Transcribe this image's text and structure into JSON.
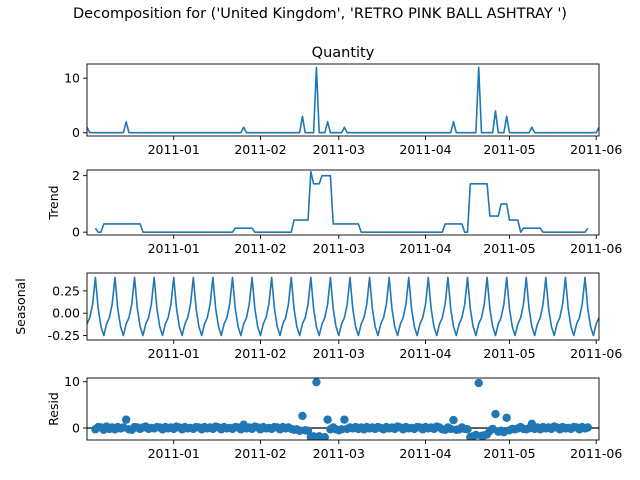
{
  "figure": {
    "suptitle": "Decomposition for ('United Kingdom', 'RETRO PINK BALL ASHTRAY ')"
  },
  "chart_data": [
    {
      "type": "line",
      "title": "Quantity",
      "ylabel": "",
      "xlabel": "",
      "color": "#1f77b4",
      "x_start": "2010-12-01",
      "x_end": "2011-06-02",
      "xticks": [
        "2011-01",
        "2011-02",
        "2011-03",
        "2011-04",
        "2011-05",
        "2011-06"
      ],
      "yticks": [
        0,
        10
      ],
      "ylim": [
        -0.6,
        12.6
      ],
      "points": [
        [
          "2010-12-01",
          1
        ],
        [
          "2010-12-02",
          0
        ],
        [
          "2010-12-14",
          0
        ],
        [
          "2010-12-15",
          2
        ],
        [
          "2010-12-16",
          0
        ],
        [
          "2011-01-25",
          0
        ],
        [
          "2011-01-26",
          1
        ],
        [
          "2011-01-27",
          0
        ],
        [
          "2011-02-15",
          0
        ],
        [
          "2011-02-16",
          3
        ],
        [
          "2011-02-17",
          0
        ],
        [
          "2011-02-20",
          0
        ],
        [
          "2011-02-21",
          12
        ],
        [
          "2011-02-22",
          0
        ],
        [
          "2011-02-24",
          0
        ],
        [
          "2011-02-25",
          2
        ],
        [
          "2011-02-26",
          0
        ],
        [
          "2011-03-02",
          0
        ],
        [
          "2011-03-03",
          1
        ],
        [
          "2011-03-04",
          0
        ],
        [
          "2011-04-10",
          0
        ],
        [
          "2011-04-11",
          2
        ],
        [
          "2011-04-12",
          0
        ],
        [
          "2011-04-19",
          0
        ],
        [
          "2011-04-20",
          12
        ],
        [
          "2011-04-21",
          0
        ],
        [
          "2011-04-25",
          0
        ],
        [
          "2011-04-26",
          4
        ],
        [
          "2011-04-27",
          0
        ],
        [
          "2011-04-29",
          0
        ],
        [
          "2011-04-30",
          3
        ],
        [
          "2011-05-01",
          0
        ],
        [
          "2011-05-08",
          0
        ],
        [
          "2011-05-09",
          1
        ],
        [
          "2011-05-10",
          0
        ],
        [
          "2011-06-01",
          0
        ],
        [
          "2011-06-02",
          1
        ]
      ]
    },
    {
      "type": "line",
      "title": "",
      "ylabel": "Trend",
      "xlabel": "",
      "color": "#1f77b4",
      "x_start": "2010-12-01",
      "x_end": "2011-06-02",
      "xticks": [
        "2011-01",
        "2011-02",
        "2011-03",
        "2011-04",
        "2011-05",
        "2011-06"
      ],
      "yticks": [
        0,
        2
      ],
      "ylim": [
        -0.1,
        2.2
      ],
      "points": [
        [
          "2010-12-04",
          0.14
        ],
        [
          "2010-12-05",
          0
        ],
        [
          "2010-12-06",
          0
        ],
        [
          "2010-12-07",
          0.29
        ],
        [
          "2010-12-14",
          0.29
        ],
        [
          "2010-12-15",
          0.29
        ],
        [
          "2010-12-20",
          0.29
        ],
        [
          "2010-12-21",
          0
        ],
        [
          "2011-01-22",
          0
        ],
        [
          "2011-01-23",
          0.14
        ],
        [
          "2011-01-29",
          0.14
        ],
        [
          "2011-01-30",
          0
        ],
        [
          "2011-02-12",
          0
        ],
        [
          "2011-02-13",
          0.43
        ],
        [
          "2011-02-18",
          0.43
        ],
        [
          "2011-02-19",
          2.14
        ],
        [
          "2011-02-20",
          1.71
        ],
        [
          "2011-02-22",
          1.71
        ],
        [
          "2011-02-23",
          2.0
        ],
        [
          "2011-02-26",
          2.0
        ],
        [
          "2011-02-27",
          0.29
        ],
        [
          "2011-03-08",
          0.29
        ],
        [
          "2011-03-09",
          0
        ],
        [
          "2011-04-07",
          0
        ],
        [
          "2011-04-08",
          0.29
        ],
        [
          "2011-04-14",
          0.29
        ],
        [
          "2011-04-15",
          0
        ],
        [
          "2011-04-16",
          0
        ],
        [
          "2011-04-17",
          1.71
        ],
        [
          "2011-04-23",
          1.71
        ],
        [
          "2011-04-24",
          0.57
        ],
        [
          "2011-04-27",
          0.57
        ],
        [
          "2011-04-28",
          1.0
        ],
        [
          "2011-04-30",
          1.0
        ],
        [
          "2011-05-01",
          0.43
        ],
        [
          "2011-05-04",
          0.43
        ],
        [
          "2011-05-05",
          0
        ],
        [
          "2011-05-06",
          0.14
        ],
        [
          "2011-05-12",
          0.14
        ],
        [
          "2011-05-13",
          0
        ],
        [
          "2011-05-28",
          0
        ],
        [
          "2011-05-29",
          0.14
        ]
      ]
    },
    {
      "type": "line",
      "title": "",
      "ylabel": "Seasonal",
      "xlabel": "",
      "color": "#1f77b4",
      "x_start": "2010-12-01",
      "x_end": "2011-06-02",
      "xticks": [
        "2011-01",
        "2011-02",
        "2011-03",
        "2011-04",
        "2011-05",
        "2011-06"
      ],
      "yticks": [
        0.25,
        0.0,
        -0.25
      ],
      "ylim": [
        -0.3,
        0.45
      ],
      "period": 7,
      "pattern_start": "2010-12-01",
      "pattern": [
        -0.12,
        -0.05,
        0.1,
        0.4,
        0.05,
        -0.15,
        -0.25
      ]
    },
    {
      "type": "scatter",
      "title": "",
      "ylabel": "Resid",
      "xlabel": "",
      "color": "#1f77b4",
      "x_start": "2010-12-01",
      "x_end": "2011-06-02",
      "xticks": [
        "2011-01",
        "2011-02",
        "2011-03",
        "2011-04",
        "2011-05",
        "2011-06"
      ],
      "yticks": [
        0,
        10
      ],
      "ylim": [
        -2.6,
        10.8
      ],
      "baseline": 0,
      "points": [
        [
          "2010-12-04",
          -0.3
        ],
        [
          "2010-12-05",
          0.2
        ],
        [
          "2010-12-06",
          0.1
        ],
        [
          "2010-12-07",
          -0.4
        ],
        [
          "2010-12-08",
          0.3
        ],
        [
          "2010-12-09",
          -0.2
        ],
        [
          "2010-12-10",
          0.1
        ],
        [
          "2010-12-11",
          -0.3
        ],
        [
          "2010-12-12",
          0.2
        ],
        [
          "2010-12-13",
          -0.1
        ],
        [
          "2010-12-14",
          0.1
        ],
        [
          "2010-12-15",
          1.8
        ],
        [
          "2010-12-16",
          -0.3
        ],
        [
          "2010-12-17",
          -0.4
        ],
        [
          "2010-12-18",
          0.2
        ],
        [
          "2010-12-19",
          0.1
        ],
        [
          "2010-12-20",
          -0.2
        ],
        [
          "2010-12-21",
          0.1
        ],
        [
          "2010-12-22",
          0.3
        ],
        [
          "2010-12-23",
          -0.2
        ],
        [
          "2010-12-24",
          0.0
        ],
        [
          "2010-12-25",
          -0.1
        ],
        [
          "2010-12-26",
          0.2
        ],
        [
          "2010-12-27",
          0.1
        ],
        [
          "2010-12-28",
          -0.3
        ],
        [
          "2010-12-29",
          0.2
        ],
        [
          "2010-12-30",
          -0.1
        ],
        [
          "2010-12-31",
          0.1
        ],
        [
          "2011-01-01",
          -0.2
        ],
        [
          "2011-01-02",
          0.3
        ],
        [
          "2011-01-03",
          0.1
        ],
        [
          "2011-01-04",
          -0.3
        ],
        [
          "2011-01-05",
          0.2
        ],
        [
          "2011-01-06",
          -0.1
        ],
        [
          "2011-01-07",
          0.0
        ],
        [
          "2011-01-08",
          -0.2
        ],
        [
          "2011-01-09",
          0.2
        ],
        [
          "2011-01-10",
          0.1
        ],
        [
          "2011-01-11",
          -0.3
        ],
        [
          "2011-01-12",
          0.2
        ],
        [
          "2011-01-13",
          -0.1
        ],
        [
          "2011-01-14",
          0.1
        ],
        [
          "2011-01-15",
          -0.2
        ],
        [
          "2011-01-16",
          0.3
        ],
        [
          "2011-01-17",
          0.1
        ],
        [
          "2011-01-18",
          -0.3
        ],
        [
          "2011-01-19",
          0.2
        ],
        [
          "2011-01-20",
          -0.1
        ],
        [
          "2011-01-21",
          0.0
        ],
        [
          "2011-01-22",
          -0.2
        ],
        [
          "2011-01-23",
          0.2
        ],
        [
          "2011-01-24",
          0.1
        ],
        [
          "2011-01-25",
          -0.3
        ],
        [
          "2011-01-26",
          0.7
        ],
        [
          "2011-01-27",
          -0.1
        ],
        [
          "2011-01-28",
          0.1
        ],
        [
          "2011-01-29",
          -0.2
        ],
        [
          "2011-01-30",
          0.3
        ],
        [
          "2011-01-31",
          0.1
        ],
        [
          "2011-02-01",
          -0.3
        ],
        [
          "2011-02-02",
          0.2
        ],
        [
          "2011-02-03",
          -0.1
        ],
        [
          "2011-02-04",
          0.0
        ],
        [
          "2011-02-05",
          -0.2
        ],
        [
          "2011-02-06",
          0.2
        ],
        [
          "2011-02-07",
          0.1
        ],
        [
          "2011-02-08",
          -0.3
        ],
        [
          "2011-02-09",
          0.2
        ],
        [
          "2011-02-10",
          -0.1
        ],
        [
          "2011-02-11",
          0.1
        ],
        [
          "2011-02-12",
          -0.2
        ],
        [
          "2011-02-13",
          -0.4
        ],
        [
          "2011-02-14",
          -0.3
        ],
        [
          "2011-02-15",
          -0.6
        ],
        [
          "2011-02-16",
          2.6
        ],
        [
          "2011-02-17",
          -0.5
        ],
        [
          "2011-02-18",
          -0.6
        ],
        [
          "2011-02-19",
          -2.0
        ],
        [
          "2011-02-20",
          -1.8
        ],
        [
          "2011-02-21",
          9.9
        ],
        [
          "2011-02-22",
          -1.8
        ],
        [
          "2011-02-23",
          -2.1
        ],
        [
          "2011-02-24",
          -2.0
        ],
        [
          "2011-02-25",
          1.8
        ],
        [
          "2011-02-26",
          -0.3
        ],
        [
          "2011-02-27",
          0.1
        ],
        [
          "2011-02-28",
          -0.3
        ],
        [
          "2011-03-01",
          -0.5
        ],
        [
          "2011-03-02",
          -0.3
        ],
        [
          "2011-03-03",
          1.8
        ],
        [
          "2011-03-04",
          -0.2
        ],
        [
          "2011-03-05",
          0.1
        ],
        [
          "2011-03-06",
          -0.1
        ],
        [
          "2011-03-07",
          0.2
        ],
        [
          "2011-03-08",
          -0.2
        ],
        [
          "2011-03-09",
          0.1
        ],
        [
          "2011-03-10",
          -0.3
        ],
        [
          "2011-03-11",
          0.2
        ],
        [
          "2011-03-12",
          -0.1
        ],
        [
          "2011-03-13",
          0.1
        ],
        [
          "2011-03-14",
          -0.2
        ],
        [
          "2011-03-15",
          0.2
        ],
        [
          "2011-03-16",
          0.0
        ],
        [
          "2011-03-17",
          -0.3
        ],
        [
          "2011-03-18",
          0.2
        ],
        [
          "2011-03-19",
          -0.1
        ],
        [
          "2011-03-20",
          0.1
        ],
        [
          "2011-03-21",
          -0.2
        ],
        [
          "2011-03-22",
          0.3
        ],
        [
          "2011-03-23",
          0.1
        ],
        [
          "2011-03-24",
          -0.3
        ],
        [
          "2011-03-25",
          0.2
        ],
        [
          "2011-03-26",
          -0.1
        ],
        [
          "2011-03-27",
          0.0
        ],
        [
          "2011-03-28",
          -0.2
        ],
        [
          "2011-03-29",
          0.2
        ],
        [
          "2011-03-30",
          0.1
        ],
        [
          "2011-03-31",
          -0.3
        ],
        [
          "2011-04-01",
          0.2
        ],
        [
          "2011-04-02",
          -0.1
        ],
        [
          "2011-04-03",
          0.1
        ],
        [
          "2011-04-04",
          -0.2
        ],
        [
          "2011-04-05",
          0.3
        ],
        [
          "2011-04-06",
          0.1
        ],
        [
          "2011-04-07",
          -0.3
        ],
        [
          "2011-04-08",
          -0.4
        ],
        [
          "2011-04-09",
          0.1
        ],
        [
          "2011-04-10",
          -0.2
        ],
        [
          "2011-04-11",
          1.7
        ],
        [
          "2011-04-12",
          -0.4
        ],
        [
          "2011-04-13",
          -0.3
        ],
        [
          "2011-04-14",
          0.1
        ],
        [
          "2011-04-15",
          -0.2
        ],
        [
          "2011-04-16",
          -0.3
        ],
        [
          "2011-04-17",
          -2.0
        ],
        [
          "2011-04-18",
          -1.8
        ],
        [
          "2011-04-19",
          -1.5
        ],
        [
          "2011-04-20",
          9.7
        ],
        [
          "2011-04-21",
          -1.7
        ],
        [
          "2011-04-22",
          -1.6
        ],
        [
          "2011-04-23",
          -1.4
        ],
        [
          "2011-04-24",
          -0.6
        ],
        [
          "2011-04-25",
          -0.2
        ],
        [
          "2011-04-26",
          3.0
        ],
        [
          "2011-04-27",
          -0.8
        ],
        [
          "2011-04-28",
          -0.6
        ],
        [
          "2011-04-29",
          -0.9
        ],
        [
          "2011-04-30",
          2.2
        ],
        [
          "2011-05-01",
          -0.5
        ],
        [
          "2011-05-02",
          -0.2
        ],
        [
          "2011-05-03",
          -0.3
        ],
        [
          "2011-05-04",
          -0.1
        ],
        [
          "2011-05-05",
          0.2
        ],
        [
          "2011-05-06",
          -0.2
        ],
        [
          "2011-05-07",
          -0.3
        ],
        [
          "2011-05-08",
          -0.1
        ],
        [
          "2011-05-09",
          0.9
        ],
        [
          "2011-05-10",
          -0.2
        ],
        [
          "2011-05-11",
          0.1
        ],
        [
          "2011-05-12",
          -0.3
        ],
        [
          "2011-05-13",
          0.2
        ],
        [
          "2011-05-14",
          -0.1
        ],
        [
          "2011-05-15",
          0.1
        ],
        [
          "2011-05-16",
          -0.2
        ],
        [
          "2011-05-17",
          0.3
        ],
        [
          "2011-05-18",
          0.1
        ],
        [
          "2011-05-19",
          -0.3
        ],
        [
          "2011-05-20",
          0.2
        ],
        [
          "2011-05-21",
          -0.1
        ],
        [
          "2011-05-22",
          0.0
        ],
        [
          "2011-05-23",
          -0.2
        ],
        [
          "2011-05-24",
          0.2
        ],
        [
          "2011-05-25",
          0.1
        ],
        [
          "2011-05-26",
          -0.3
        ],
        [
          "2011-05-27",
          0.2
        ],
        [
          "2011-05-28",
          -0.1
        ],
        [
          "2011-05-29",
          0.1
        ]
      ]
    }
  ]
}
